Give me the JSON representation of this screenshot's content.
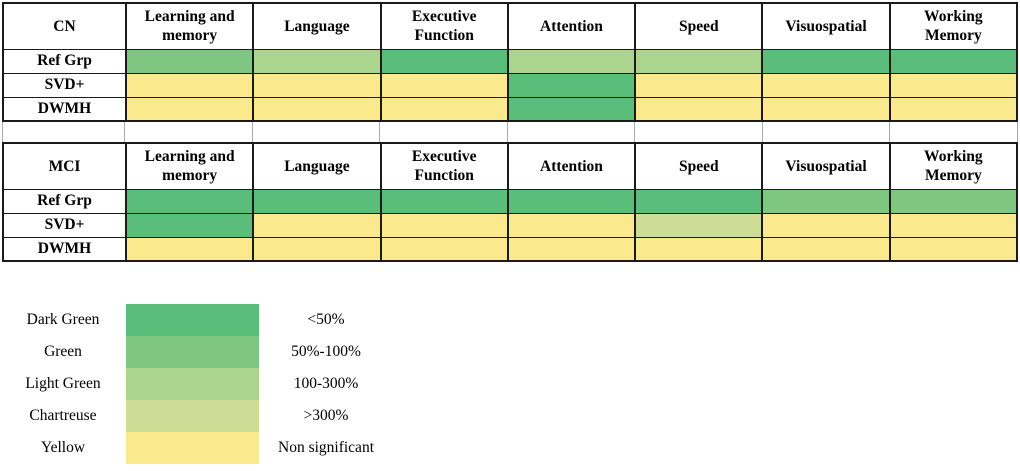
{
  "palette": {
    "dark_green": "#5abd7a",
    "green": "#7fc681",
    "light_green": "#abd48e",
    "chartreuse": "#cedd96",
    "yellow": "#fbe98e"
  },
  "chart_data": [
    {
      "type": "heatmap",
      "group_label": "CN",
      "columns": [
        "Learning and\nmemory",
        "Language",
        "Executive\nFunction",
        "Attention",
        "Speed",
        "Visuospatial",
        "Working\nMemory"
      ],
      "rows": [
        {
          "label": "Ref Grp",
          "cells": [
            "green",
            "light_green",
            "dark_green",
            "light_green",
            "light_green",
            "dark_green",
            "dark_green"
          ]
        },
        {
          "label": "SVD+",
          "cells": [
            "yellow",
            "yellow",
            "yellow",
            "dark_green",
            "yellow",
            "yellow",
            "yellow"
          ]
        },
        {
          "label": "DWMH",
          "cells": [
            "yellow",
            "yellow",
            "yellow",
            "dark_green",
            "yellow",
            "yellow",
            "yellow"
          ]
        }
      ]
    },
    {
      "type": "heatmap",
      "group_label": "MCI",
      "columns": [
        "Learning and\nmemory",
        "Language",
        "Executive\nFunction",
        "Attention",
        "Speed",
        "Visuospatial",
        "Working\nMemory"
      ],
      "rows": [
        {
          "label": "Ref Grp",
          "cells": [
            "dark_green",
            "dark_green",
            "dark_green",
            "dark_green",
            "dark_green",
            "green",
            "green"
          ]
        },
        {
          "label": "SVD+",
          "cells": [
            "dark_green",
            "yellow",
            "yellow",
            "yellow",
            "chartreuse",
            "yellow",
            "yellow"
          ]
        },
        {
          "label": "DWMH",
          "cells": [
            "yellow",
            "yellow",
            "yellow",
            "yellow",
            "yellow",
            "yellow",
            "yellow"
          ]
        }
      ]
    }
  ],
  "legend": {
    "entries": [
      {
        "name": "Dark Green",
        "color_key": "dark_green",
        "range_label": "<50%"
      },
      {
        "name": "Green",
        "color_key": "green",
        "range_label": "50%-100%"
      },
      {
        "name": "Light Green",
        "color_key": "light_green",
        "range_label": "100-300%"
      },
      {
        "name": "Chartreuse",
        "color_key": "chartreuse",
        "range_label": ">300%"
      },
      {
        "name": "Yellow",
        "color_key": "yellow",
        "range_label": "Non significant"
      }
    ]
  }
}
